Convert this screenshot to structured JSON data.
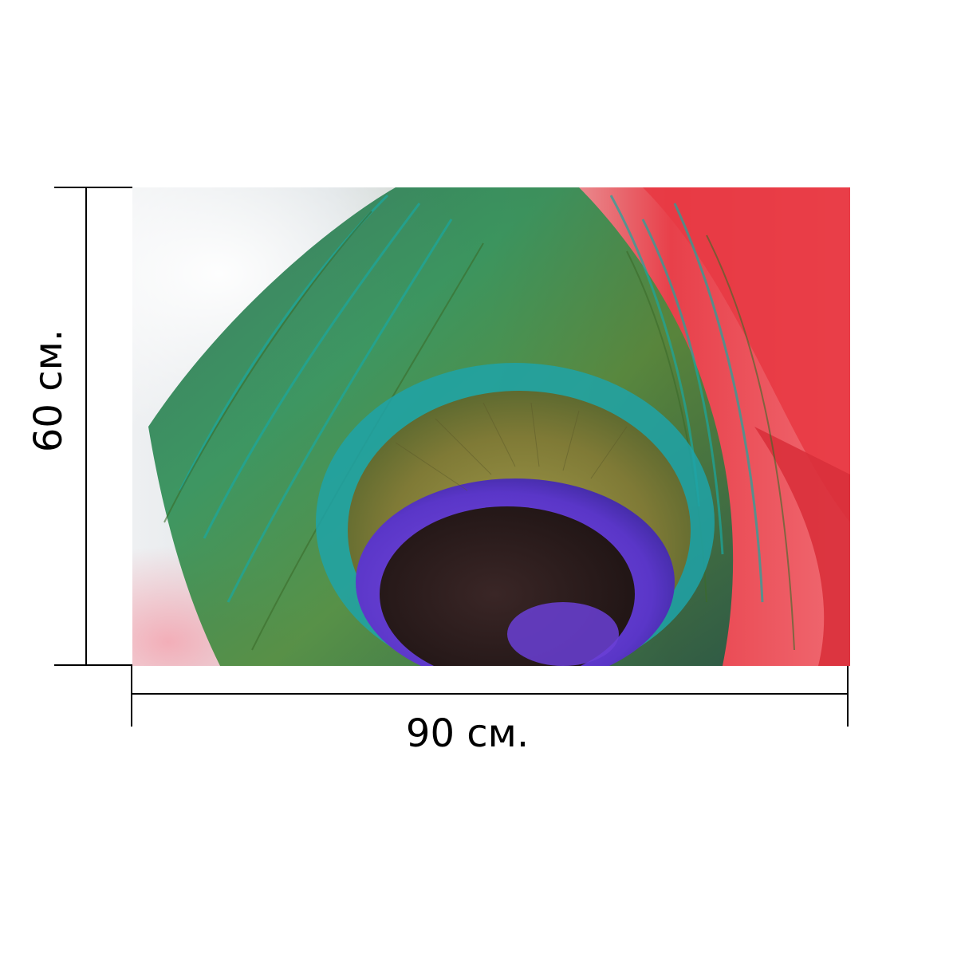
{
  "product_preview": {
    "photo": {
      "subject_icon": "peacock-feather-photo",
      "colors": {
        "left_background": "#eef0f2",
        "right_background": "#e8404a",
        "feather_green": "#2f8f56",
        "feather_teal": "#1fa3a8",
        "eye_gold": "#8a8a3a",
        "eye_violet": "#6a3fd6",
        "eye_center": "#2a1c1c"
      }
    },
    "dimensions": {
      "width_label": "90 см.",
      "height_label": "60 см.",
      "line_color": "#000000"
    }
  }
}
